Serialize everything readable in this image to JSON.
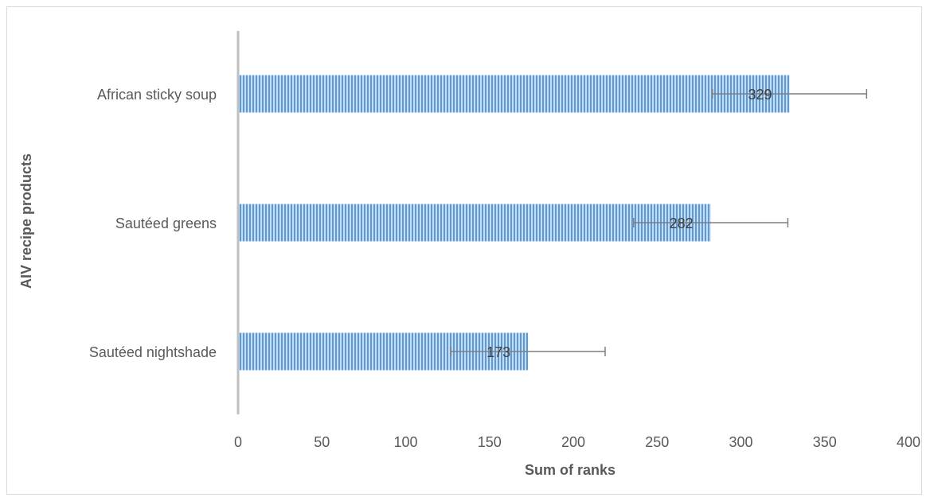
{
  "chart_data": {
    "type": "bar",
    "orientation": "horizontal",
    "categories": [
      "Sautéed nightshade",
      "Sautéed greens",
      "African sticky soup"
    ],
    "values": [
      173,
      282,
      329
    ],
    "data_labels": [
      "173",
      "282",
      "329"
    ],
    "error": [
      46,
      46,
      46
    ],
    "xlabel": "Sum of ranks",
    "ylabel": "AIV recipe products",
    "xlim": [
      0,
      400
    ],
    "xticks": [
      0,
      50,
      100,
      150,
      200,
      250,
      300,
      350,
      400
    ],
    "xtick_labels": [
      "0",
      "50",
      "100",
      "150",
      "200",
      "250",
      "300",
      "350",
      "400"
    ],
    "grid": false,
    "legend": "none",
    "bar_color": "#5b9bd5",
    "bar_pattern": "vertical-stripes",
    "error_bar_color": "#7f7f7f",
    "axis_color": "#bfbfbf"
  }
}
